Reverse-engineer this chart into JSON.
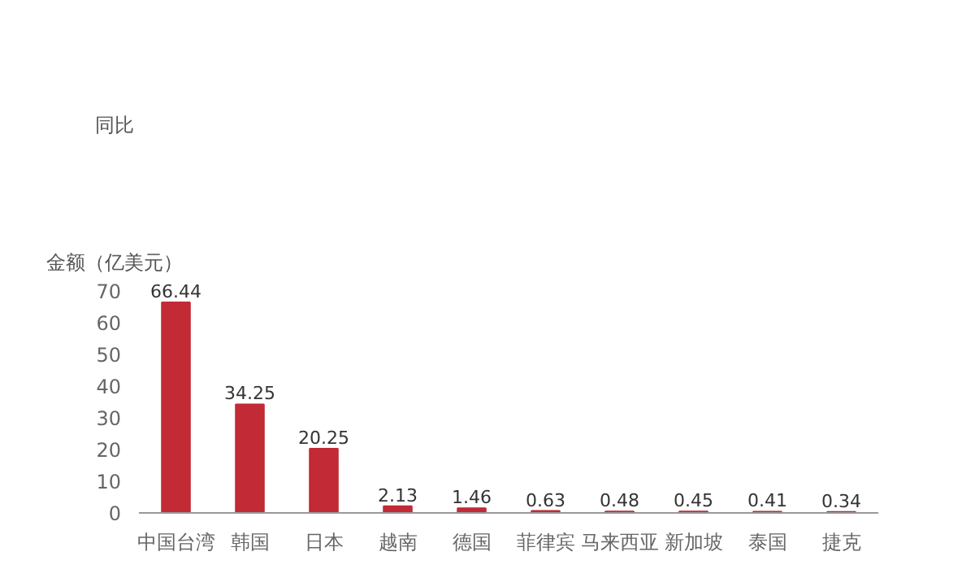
{
  "chart_data": {
    "type": "bar",
    "title": "同比",
    "ylabel": "金额（亿美元）",
    "categories": [
      "中国台湾",
      "韩国",
      "日本",
      "越南",
      "德国",
      "菲律宾",
      "马来西亚",
      "新加坡",
      "泰国",
      "捷克"
    ],
    "values": [
      66.44,
      34.25,
      20.25,
      2.13,
      1.46,
      0.63,
      0.48,
      0.45,
      0.41,
      0.34
    ],
    "color": "#c22a35",
    "ylim": [
      0,
      70
    ],
    "yticks": [
      0,
      10,
      20,
      30,
      40,
      50,
      60,
      70
    ],
    "grid": false,
    "data_labels": true
  }
}
